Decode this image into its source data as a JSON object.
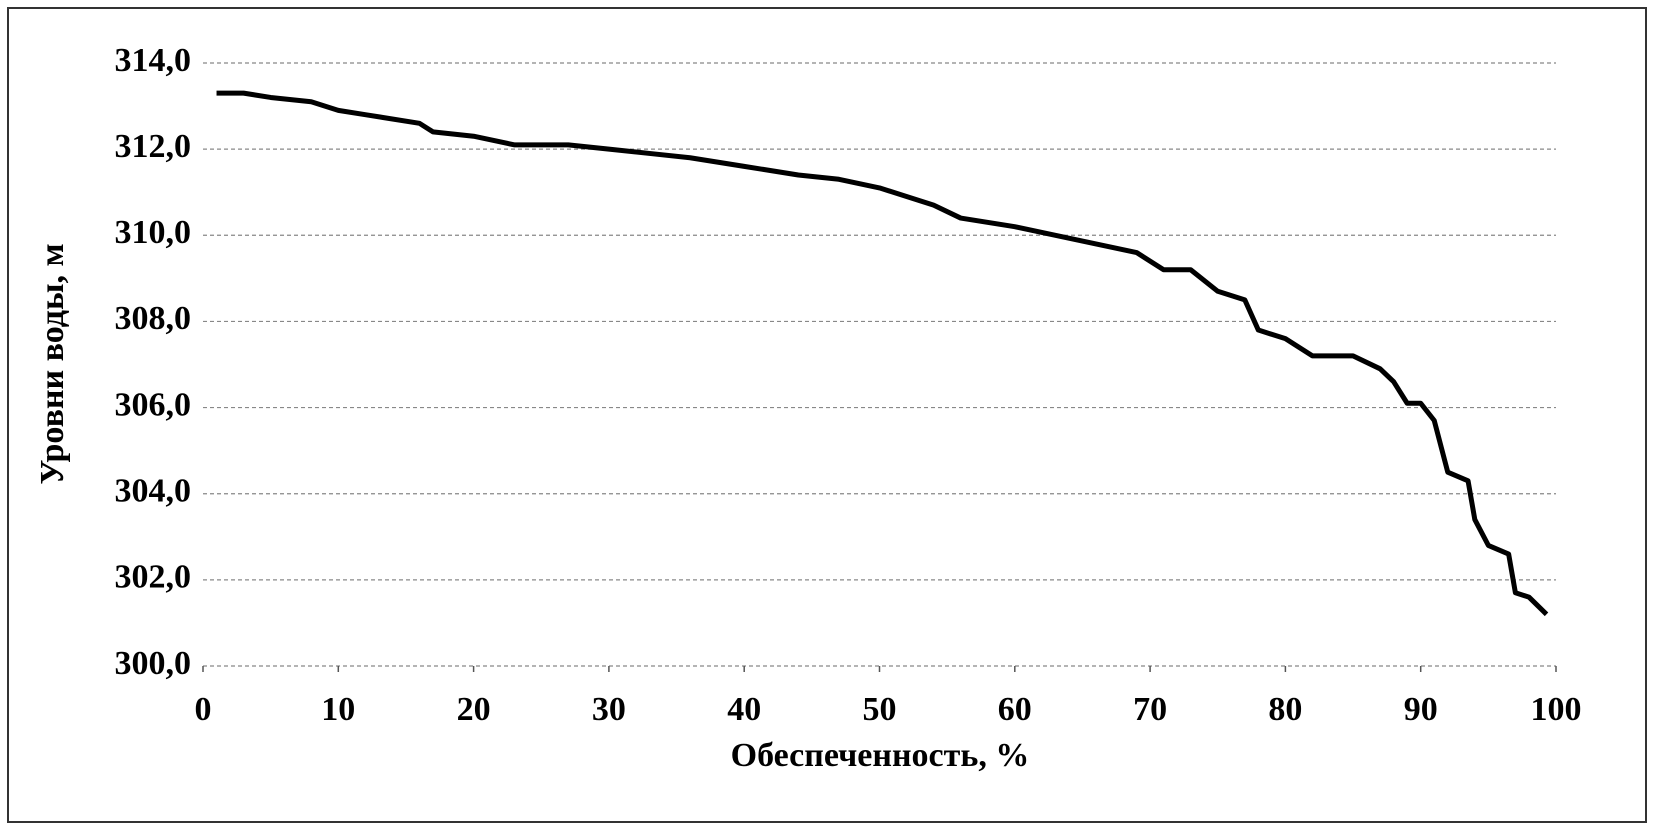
{
  "chart_data": {
    "type": "line",
    "x_label": "Обеспеченность, %",
    "y_label": "Уровни воды, м",
    "xlim": [
      0,
      100
    ],
    "xticks": [
      0,
      10,
      20,
      30,
      40,
      50,
      60,
      70,
      80,
      90,
      100
    ],
    "ylim": [
      300,
      314
    ],
    "yticks": [
      {
        "value": 300,
        "label": "300,0"
      },
      {
        "value": 302,
        "label": "302,0"
      },
      {
        "value": 304,
        "label": "304,0"
      },
      {
        "value": 306,
        "label": "306,0"
      },
      {
        "value": 308,
        "label": "308,0"
      },
      {
        "value": 310,
        "label": "310,0"
      },
      {
        "value": 312,
        "label": "312,0"
      },
      {
        "value": 314,
        "label": "314,0"
      }
    ],
    "grid": true,
    "x": [
      1,
      3,
      5,
      8,
      10,
      12,
      16,
      17,
      20,
      23,
      27,
      30,
      33,
      36,
      40,
      44,
      47,
      50,
      52,
      54,
      56,
      60,
      63,
      66,
      69,
      71,
      73,
      75,
      77,
      78,
      80,
      82,
      85,
      87,
      88,
      89,
      90,
      91,
      92,
      93.5,
      94,
      95,
      96.5,
      97,
      98,
      99.3
    ],
    "series": [
      {
        "color": "#000000",
        "values": [
          313.3,
          313.3,
          313.2,
          313.1,
          312.9,
          312.8,
          312.6,
          312.4,
          312.3,
          312.1,
          312.1,
          312.0,
          311.9,
          311.8,
          311.6,
          311.4,
          311.3,
          311.1,
          310.9,
          310.7,
          310.4,
          310.2,
          310.0,
          309.8,
          309.6,
          309.2,
          309.2,
          308.7,
          308.5,
          307.8,
          307.6,
          307.2,
          307.2,
          306.9,
          306.6,
          306.1,
          306.1,
          305.7,
          304.5,
          304.3,
          303.4,
          302.8,
          302.6,
          301.7,
          301.6,
          301.2
        ]
      }
    ]
  }
}
